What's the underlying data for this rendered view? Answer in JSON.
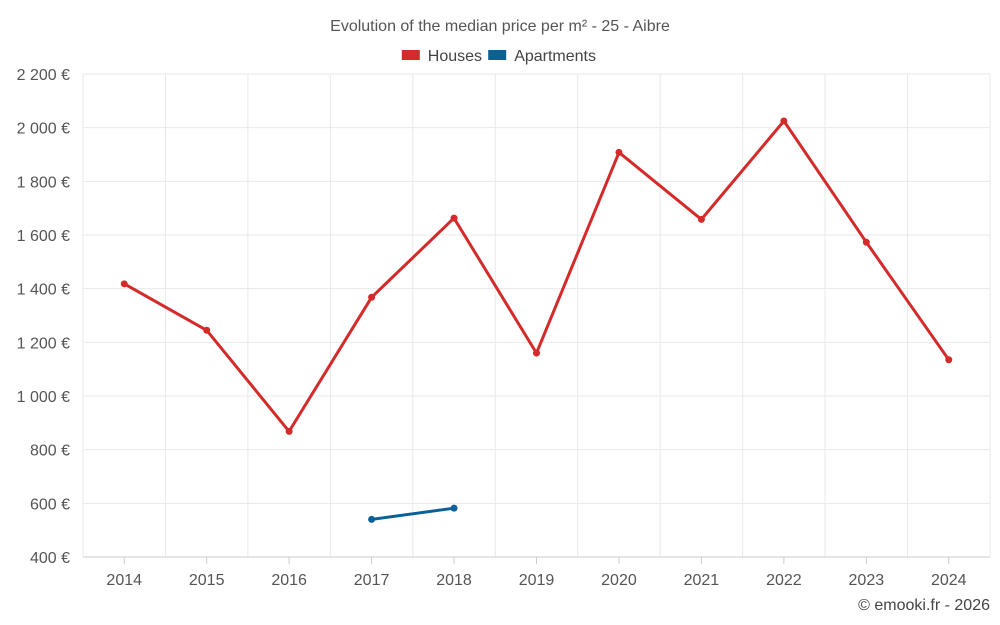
{
  "chart_data": {
    "type": "line",
    "title": "Evolution of the median price per m² - 25 - Aibre",
    "categories": [
      "2014",
      "2015",
      "2016",
      "2017",
      "2018",
      "2019",
      "2020",
      "2021",
      "2022",
      "2023",
      "2024"
    ],
    "ylim": [
      400,
      2200
    ],
    "yticks": [
      400,
      600,
      800,
      1000,
      1200,
      1400,
      1600,
      1800,
      2000,
      2200
    ],
    "ytick_labels": [
      "400 €",
      "600 €",
      "800 €",
      "1 000 €",
      "1 200 €",
      "1 400 €",
      "1 600 €",
      "1 800 €",
      "2 000 €",
      "2 200 €"
    ],
    "grid": true,
    "legend_position": "top-center",
    "series": [
      {
        "name": "Houses",
        "color": "#d42a2a",
        "values": [
          1418,
          1245,
          868,
          1368,
          1663,
          1160,
          1908,
          1658,
          2025,
          1573,
          1135
        ]
      },
      {
        "name": "Apartments",
        "color": "#0a6196",
        "values": [
          null,
          null,
          null,
          540,
          582,
          null,
          null,
          null,
          null,
          null,
          null
        ]
      }
    ]
  },
  "credit": "© emooki.fr - 2026"
}
